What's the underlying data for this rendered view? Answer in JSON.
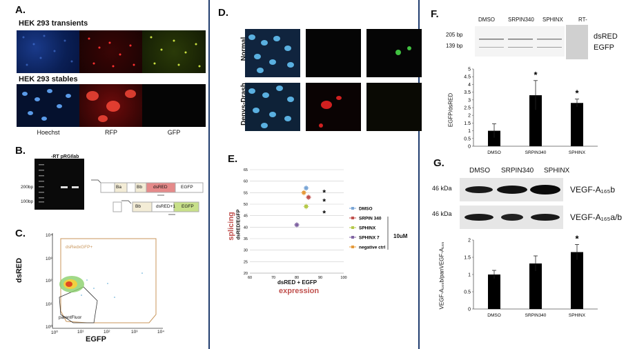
{
  "panelA": {
    "label": "A.",
    "row1_title": "HEK 293 transients",
    "row2_title": "HEK 293 stables",
    "captions": [
      "Hoechst",
      "RFP",
      "GFP"
    ]
  },
  "panelB": {
    "label": "B.",
    "gel_header": "-RT pRGIlab",
    "gel_marker_200": "200bp",
    "gel_marker_100": "100bp",
    "construct_top": [
      "Ba",
      "Bb",
      "dsRED",
      "EGFP"
    ],
    "construct_bottom": [
      "Bb",
      "dsRED+1",
      "EGFP"
    ]
  },
  "panelC": {
    "label": "C.",
    "xlabel": "EGFP",
    "ylabel": "dsRED",
    "gate_top": "dsRedxGFP+",
    "gate_bottom": "parentFluor",
    "xticks": [
      "10⁰",
      "10¹",
      "10²",
      "10³",
      "10⁴"
    ],
    "yticks": [
      "10⁰",
      "10¹",
      "10²",
      "10³",
      "10⁴"
    ]
  },
  "panelD": {
    "label": "D.",
    "row1_label": "Normal podocytes",
    "row2_label": "Denys-Drash podocytes"
  },
  "panelE": {
    "label": "E.",
    "chart_data": {
      "type": "scatter",
      "xlabel": "dsRED + EGFP",
      "xlabel_extra": "expression",
      "ylabel": "dsRED/EGFP",
      "ylabel_extra": "splicing",
      "xlim": [
        60,
        100
      ],
      "ylim": [
        20,
        65
      ],
      "xticks": [
        60,
        70,
        80,
        90,
        100
      ],
      "yticks": [
        20,
        25,
        30,
        35,
        40,
        45,
        50,
        55,
        60,
        65
      ],
      "series": [
        {
          "name": "DMSO",
          "color": "#7aa6d6",
          "x": 84,
          "y": 57
        },
        {
          "name": "SRPIN 340",
          "color": "#c0504d",
          "x": 85,
          "y": 53
        },
        {
          "name": "SPHINX",
          "color": "#b5c94a",
          "x": 84,
          "y": 49
        },
        {
          "name": "SPHINX 7",
          "color": "#8064a2",
          "x": 80,
          "y": 41
        },
        {
          "name": "negative ctrl",
          "color": "#e59a3a",
          "x": 83,
          "y": 55
        }
      ],
      "stars": [
        "*",
        "*",
        "*"
      ],
      "bracket_label": "10uM"
    }
  },
  "panelF": {
    "label": "F.",
    "lanes": [
      "DMSO",
      "SRPIN340",
      "SPHINX",
      "RT-"
    ],
    "bp_labels": [
      "205 bp",
      "139 bp"
    ],
    "band_names": [
      "dsRED",
      "EGFP"
    ],
    "chart_data": {
      "type": "bar",
      "categories": [
        "DMSO",
        "SRPIN340",
        "SPHINX"
      ],
      "values": [
        1.0,
        3.3,
        2.8
      ],
      "errors": [
        0.45,
        0.95,
        0.25
      ],
      "ylabel": "EGFP/dsRED",
      "ylim": [
        0,
        5
      ],
      "yticks": [
        "0",
        "0.5",
        "1",
        "1.5",
        "2",
        "2.5",
        "3",
        "3.5",
        "4",
        "4.5",
        "5"
      ],
      "stars": [
        "",
        "*",
        "*"
      ]
    }
  },
  "panelG": {
    "label": "G.",
    "lanes": [
      "DMSO",
      "SRPIN340",
      "SPHINX"
    ],
    "kda": [
      "46 kDa",
      "46 kDa"
    ],
    "band1": "VEGF-A₁₆₅b",
    "band2": "VEGF-A₁₆₅a/b",
    "chart_data": {
      "type": "bar",
      "categories": [
        "DMSO",
        "SRPIN340",
        "SPHINX"
      ],
      "values": [
        1.0,
        1.32,
        1.65
      ],
      "errors": [
        0.12,
        0.22,
        0.22
      ],
      "ylabel": "VEGF-A₁₆₅b/panVEGF-A₁₆₅",
      "ylim": [
        0,
        2
      ],
      "yticks": [
        "0",
        "0.5",
        "1",
        "1.5",
        "2"
      ],
      "stars": [
        "",
        "",
        "*"
      ]
    }
  }
}
